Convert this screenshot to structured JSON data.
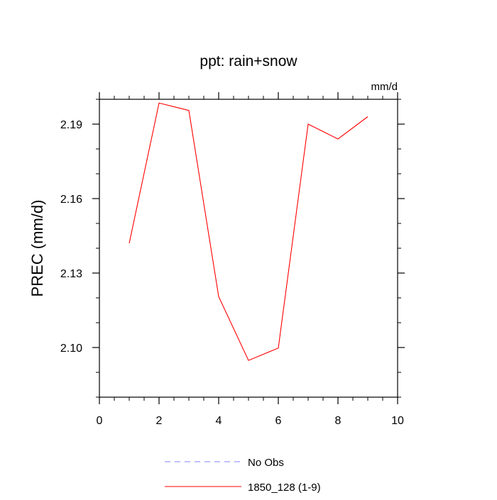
{
  "chart_data": {
    "type": "line",
    "title": "ppt: rain+snow",
    "units_label": "mm/d",
    "ylabel": "PREC  (mm/d)",
    "xlabel": "",
    "xlim": [
      0,
      10
    ],
    "ylim": [
      2.08,
      2.2
    ],
    "xticks": [
      0,
      2,
      4,
      6,
      8,
      10
    ],
    "xtick_labels": [
      "0",
      "2",
      "4",
      "6",
      "8",
      "10"
    ],
    "yticks": [
      2.1,
      2.13,
      2.16,
      2.19
    ],
    "ytick_labels": [
      "2.10",
      "2.13",
      "2.16",
      "2.19"
    ],
    "x_minor_step": 0.5,
    "y_minor_step": 0.01,
    "grid": false,
    "legend_position": "bottom",
    "series": [
      {
        "name": "No Obs",
        "color": "#8080ff",
        "dash": "dashed",
        "x": [],
        "y": []
      },
      {
        "name": "1850_128 (1-9)",
        "color": "#ff0000",
        "dash": "solid",
        "x": [
          1,
          2,
          3,
          4,
          5,
          6,
          7,
          8,
          9
        ],
        "y": [
          2.142,
          2.1985,
          2.1955,
          2.1205,
          2.0948,
          2.0998,
          2.19,
          2.184,
          2.193
        ]
      }
    ]
  }
}
